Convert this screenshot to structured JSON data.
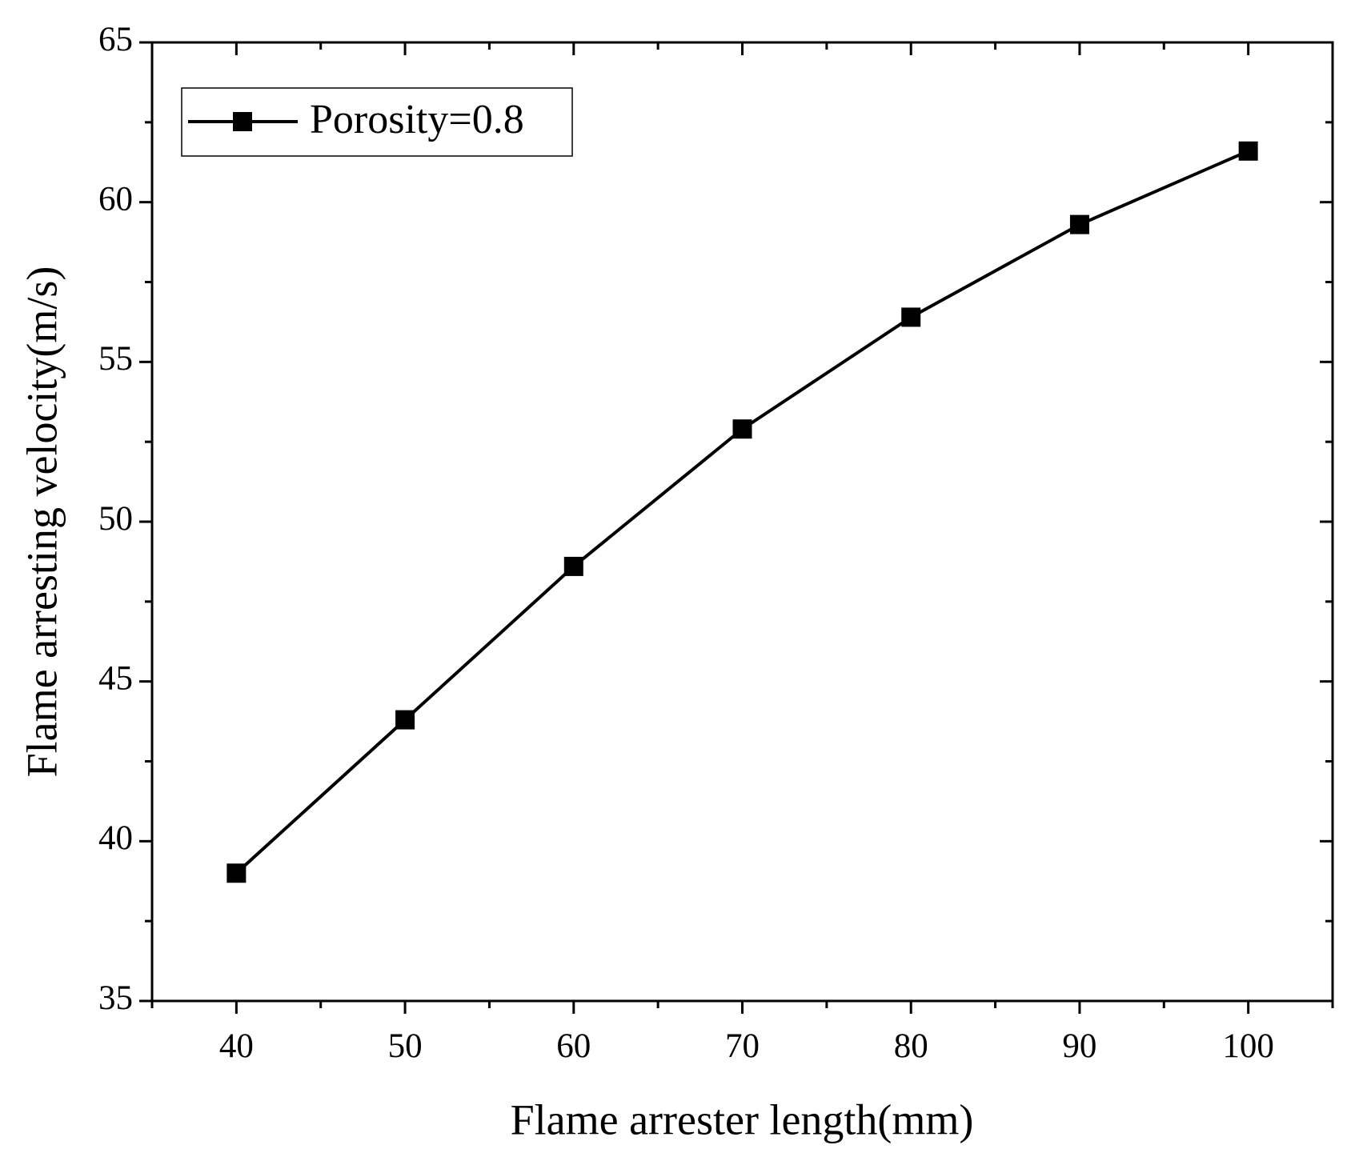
{
  "chart_data": {
    "type": "line",
    "x_label": "Flame arrester length(mm)",
    "y_label": "Flame arresting velocity(m/s)",
    "x": [
      40,
      50,
      60,
      70,
      80,
      90,
      100
    ],
    "series": [
      {
        "name": "Porosity=0.8",
        "color": "#000000",
        "values": [
          39.0,
          43.8,
          48.6,
          52.9,
          56.4,
          59.3,
          61.6
        ]
      }
    ],
    "xlim": [
      35,
      105
    ],
    "xticks": [
      40,
      50,
      60,
      70,
      80,
      90,
      100
    ],
    "ylim": [
      35,
      65
    ],
    "yticks": [
      35,
      40,
      45,
      50,
      55,
      60,
      65
    ],
    "grid": false,
    "legend": "upper left",
    "marker": "square"
  }
}
